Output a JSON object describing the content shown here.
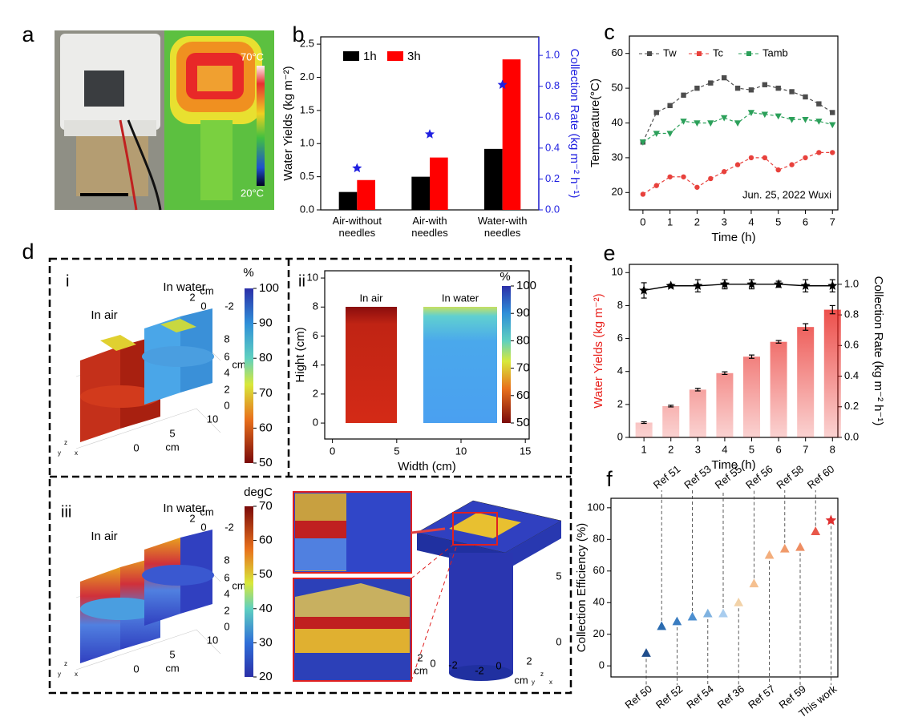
{
  "panel_labels": [
    "a",
    "b",
    "c",
    "d",
    "e",
    "f"
  ],
  "panel_a": {
    "colorbar_max": "70°C",
    "colorbar_min": "20°C"
  },
  "panel_d": {
    "i": {
      "label": "i",
      "in_air": "In air",
      "in_water": "In water",
      "colorbar": {
        "label": "%",
        "lim": [
          50,
          100
        ],
        "ticks": [
          50,
          60,
          70,
          80,
          90,
          100
        ]
      },
      "axis_texts": [
        "2",
        "cm",
        "0",
        "-2",
        "8",
        "6",
        "cm",
        "4",
        "2",
        "0",
        "10",
        "5",
        "cm",
        "0",
        "y",
        "z",
        "x"
      ]
    },
    "iii": {
      "label": "iii",
      "in_air": "In air",
      "in_water": "In water",
      "colorbar": {
        "label": "degC",
        "lim": [
          20,
          70
        ],
        "ticks": [
          20,
          30,
          40,
          50,
          60,
          70
        ]
      },
      "axis_texts": [
        "2",
        "cm",
        "0",
        "-2",
        "8",
        "6",
        "cm",
        "4",
        "2",
        "0",
        "10",
        "5",
        "cm",
        "0",
        "y",
        "z",
        "x"
      ],
      "inset_axis_texts": [
        "5",
        "0",
        "2",
        "0",
        "-2",
        "-2",
        "0",
        "2",
        "cm",
        "cm",
        "y",
        "z",
        "x"
      ]
    }
  },
  "chart_data": [
    {
      "type": "bar",
      "categories": [
        "Air-without needles",
        "Air-with needles",
        "Water-with needles"
      ],
      "series": [
        {
          "name": "1h",
          "color": "#000000",
          "values": [
            0.27,
            0.5,
            0.92
          ]
        },
        {
          "name": "3h",
          "color": "#ff0000",
          "values": [
            0.45,
            0.79,
            2.27
          ]
        },
        {
          "color": "#1f1fe0",
          "values": [
            0.27,
            0.49,
            0.81
          ],
          "axis": "y2",
          "marker": "star"
        }
      ],
      "ylabel": "Water Yields (kg m⁻²)",
      "y2label": "Collection Rate (kg m⁻² h⁻¹)",
      "ylim": [
        0,
        2.61
      ],
      "yticks": [
        {
          "value": 0,
          "label": "0.0"
        },
        0.5,
        {
          "value": 1,
          "label": "1.0"
        },
        1.5,
        {
          "value": 2,
          "label": "2.0"
        },
        2.5
      ],
      "y2lim": [
        0,
        1.12
      ],
      "y2ticks": [
        {
          "value": 0,
          "label": "0.0"
        },
        0.2,
        0.4,
        0.6,
        0.8,
        {
          "value": 1,
          "label": "1.0"
        }
      ],
      "y2color": "#1f1fe0",
      "legend": "upper left"
    },
    {
      "type": "line",
      "x": [
        0,
        0.5,
        1,
        1.5,
        2,
        2.5,
        3,
        3.5,
        4,
        4.5,
        5,
        5.5,
        6,
        6.5,
        7
      ],
      "series": [
        {
          "name": "Tw",
          "color": "#4d4d4d",
          "marker": "square",
          "values": [
            34.5,
            43,
            45,
            48,
            50,
            51.5,
            53,
            50,
            49.5,
            51,
            50,
            49,
            47.5,
            45.5,
            43
          ]
        },
        {
          "name": "Tc",
          "color": "#e8413c",
          "marker": "circle",
          "values": [
            19.5,
            22,
            24.5,
            24.5,
            21.5,
            24,
            26,
            28,
            30,
            30,
            26.5,
            28,
            30,
            31.5,
            31.5
          ]
        },
        {
          "name": "Tamb",
          "color": "#2ca05a",
          "marker": "triangle-down",
          "values": [
            34.5,
            37,
            37,
            40.5,
            40,
            40,
            41.5,
            40,
            43,
            42.5,
            42,
            41,
            41,
            40.5,
            39.5
          ]
        }
      ],
      "xlim": [
        -0.5,
        7.2
      ],
      "xticks": [
        0,
        1,
        2,
        3,
        4,
        5,
        6,
        7
      ],
      "ylim": [
        15,
        65
      ],
      "yticks": [
        20,
        30,
        40,
        50,
        60
      ],
      "xlabel": "Time (h)",
      "ylabel": "Temperature(°C)",
      "annotation": "Jun. 25, 2022 Wuxi",
      "legend": "upper left"
    },
    {
      "type": "bar",
      "x": [
        1,
        2,
        3,
        4,
        5,
        6,
        7,
        8
      ],
      "series": [
        {
          "color": "#e8211c",
          "gradient": true,
          "values": [
            0.9,
            1.9,
            2.9,
            3.9,
            4.9,
            5.8,
            6.7,
            7.75
          ],
          "errors": [
            0.05,
            0.05,
            0.08,
            0.08,
            0.1,
            0.08,
            0.2,
            0.25
          ]
        },
        {
          "color": "#000000",
          "axis": "y2",
          "marker": "star",
          "line": true,
          "values": [
            0.96,
            0.99,
            0.99,
            1.0,
            1.0,
            1.0,
            0.99,
            0.99
          ],
          "errors": [
            0.05,
            0.01,
            0.04,
            0.03,
            0.03,
            0.02,
            0.04,
            0.04
          ]
        }
      ],
      "xlim": [
        0.46,
        8.2
      ],
      "xticks": [
        1,
        2,
        3,
        4,
        5,
        6,
        7,
        8
      ],
      "ylim": [
        0,
        10.5
      ],
      "yticks": [
        0,
        2,
        4,
        6,
        8,
        10
      ],
      "y2lim": [
        0,
        1.13
      ],
      "y2ticks": [
        {
          "value": 0,
          "label": "0.0"
        },
        0.2,
        0.4,
        0.6,
        0.8,
        {
          "value": 1,
          "label": "1.0"
        }
      ],
      "xlabel": "Time (h)",
      "ylabel": "Water Yields (kg m⁻²)",
      "y2label": "Collection Rate (kg m⁻² h⁻¹)",
      "ylabel_color": "#e8211c"
    },
    {
      "type": "scatter",
      "categories": [
        "Ref 50",
        "Ref 51",
        "Ref 52",
        "Ref 53",
        "Ref 54",
        "Ref 55",
        "Ref 36",
        "Ref 56",
        "Ref 57",
        "Ref 58",
        "Ref 59",
        "Ref 60",
        "This work"
      ],
      "values": [
        8,
        25,
        28,
        31,
        33,
        33,
        40,
        52,
        70,
        74,
        75,
        85,
        92
      ],
      "colors": [
        "#1f4e8c",
        "#2a6bb0",
        "#3a7cc0",
        "#4c8fd0",
        "#7fb2e0",
        "#a9cdef",
        "#f2d2a8",
        "#f5c090",
        "#f3ae7c",
        "#f09a6a",
        "#ee8d62",
        "#e8584a",
        "#e03030"
      ],
      "markers": [
        "triangle",
        "triangle",
        "triangle",
        "triangle",
        "triangle",
        "triangle",
        "triangle",
        "triangle",
        "triangle",
        "triangle",
        "triangle",
        "triangle",
        "star"
      ],
      "ylim": [
        -7,
        106
      ],
      "yticks": [
        0,
        20,
        40,
        60,
        80,
        100
      ],
      "ylabel": "Collection Efficiency (%)"
    },
    {
      "type": "image",
      "label": "ii",
      "xlim": [
        -0.6,
        15.3
      ],
      "xticks": [
        0,
        5,
        10,
        15
      ],
      "ylim": [
        -1.1,
        10.5
      ],
      "yticks": [
        0,
        2,
        4,
        6,
        8,
        10
      ],
      "xlabel": "Width (cm)",
      "ylabel": "Hight (cm)",
      "annotations": [
        "In air",
        "In water"
      ],
      "colorbar": {
        "label": "%",
        "lim": [
          50,
          100
        ],
        "ticks": [
          50,
          60,
          70,
          80,
          90,
          100
        ]
      }
    }
  ]
}
